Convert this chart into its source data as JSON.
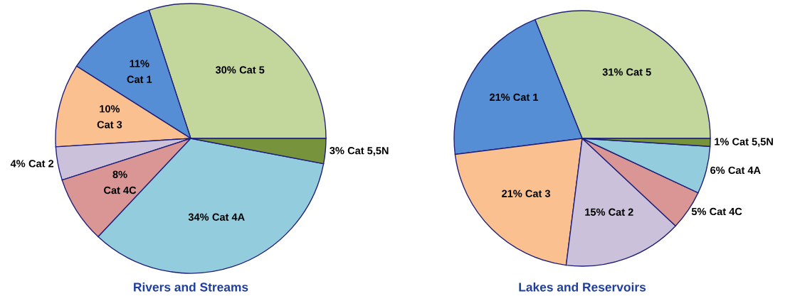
{
  "chart_data": [
    {
      "type": "pie",
      "title": "Rivers and Streams",
      "categories": [
        "Cat 5",
        "Cat 1",
        "Cat 3",
        "Cat 2",
        "Cat 4C",
        "Cat 4A",
        "Cat 5,5N"
      ],
      "values": [
        30,
        11,
        10,
        4,
        8,
        34,
        3
      ],
      "colors": [
        "#c3d69b",
        "#558ed5",
        "#fac090",
        "#ccc1da",
        "#d99694",
        "#93cddd",
        "#77933c"
      ],
      "value_labels": [
        "30%",
        "11%",
        "10%",
        "4%",
        "8%",
        "34%",
        "3%"
      ]
    },
    {
      "type": "pie",
      "title": "Lakes and Reservoirs",
      "categories": [
        "Cat 5",
        "Cat 1",
        "Cat 3",
        "Cat 2",
        "Cat 4C",
        "Cat 4A",
        "Cat 5,5N"
      ],
      "values": [
        31,
        21,
        21,
        15,
        5,
        6,
        1
      ],
      "colors": [
        "#c3d69b",
        "#558ed5",
        "#fac090",
        "#ccc1da",
        "#d99694",
        "#93cddd",
        "#77933c"
      ],
      "value_labels": [
        "31%",
        "21%",
        "21%",
        "15%",
        "5%",
        "6%",
        "1%"
      ]
    }
  ]
}
